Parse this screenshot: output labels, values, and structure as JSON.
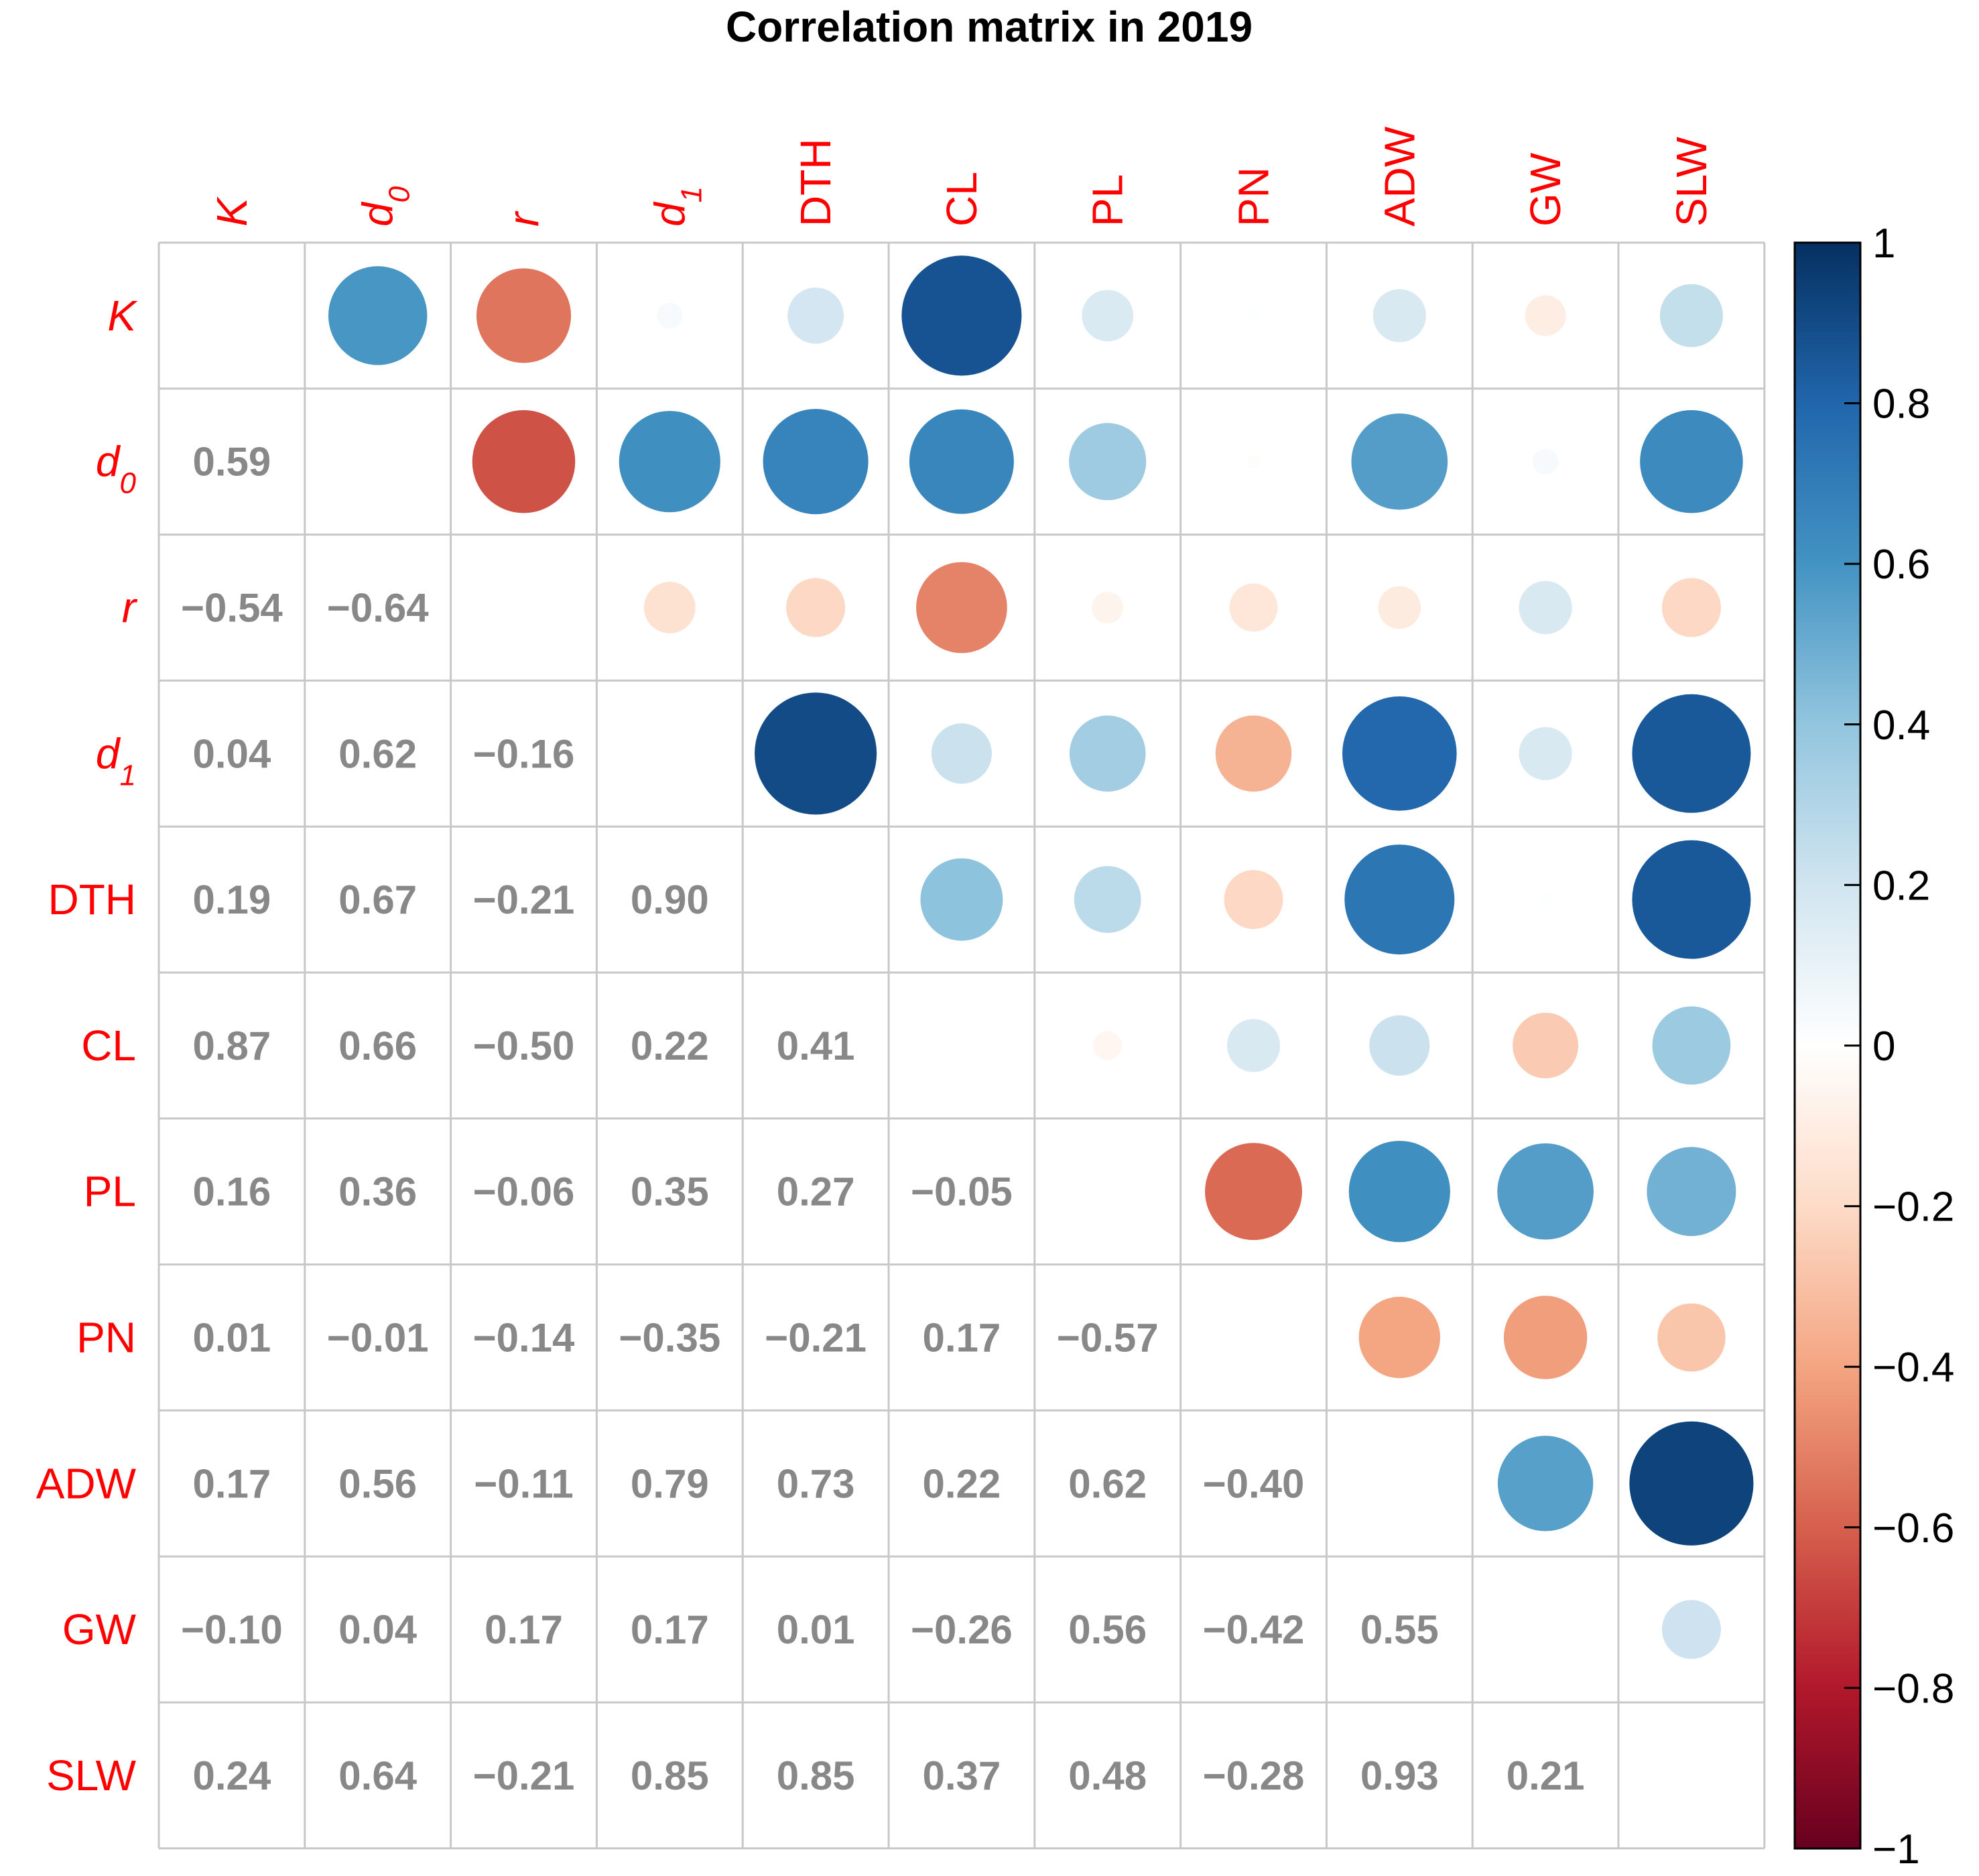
{
  "chart_data": {
    "type": "heatmap",
    "subtype": "correlation-matrix",
    "title": "Correlation matrix in 2019",
    "variables": [
      {
        "base": "K",
        "sub": "",
        "italic": true
      },
      {
        "base": "d",
        "sub": "0",
        "italic": true
      },
      {
        "base": "r",
        "sub": "",
        "italic": true
      },
      {
        "base": "d",
        "sub": "1",
        "italic": true
      },
      {
        "base": "DTH",
        "sub": "",
        "italic": false
      },
      {
        "base": "CL",
        "sub": "",
        "italic": false
      },
      {
        "base": "PL",
        "sub": "",
        "italic": false
      },
      {
        "base": "PN",
        "sub": "",
        "italic": false
      },
      {
        "base": "ADW",
        "sub": "",
        "italic": false
      },
      {
        "base": "GW",
        "sub": "",
        "italic": false
      },
      {
        "base": "SLW",
        "sub": "",
        "italic": false
      }
    ],
    "lower_triangle": "numbers",
    "upper_triangle": "circles",
    "matrix": [
      [
        null,
        0.59,
        -0.54,
        0.04,
        0.19,
        0.87,
        0.16,
        0.01,
        0.17,
        -0.1,
        0.24
      ],
      [
        0.59,
        null,
        -0.64,
        0.62,
        0.67,
        0.66,
        0.36,
        -0.01,
        0.56,
        0.04,
        0.64
      ],
      [
        -0.54,
        -0.64,
        null,
        -0.16,
        -0.21,
        -0.5,
        -0.06,
        -0.14,
        -0.11,
        0.17,
        -0.21
      ],
      [
        0.04,
        0.62,
        -0.16,
        null,
        0.9,
        0.22,
        0.35,
        -0.35,
        0.79,
        0.17,
        0.85
      ],
      [
        0.19,
        0.67,
        -0.21,
        0.9,
        null,
        0.41,
        0.27,
        -0.21,
        0.73,
        0.01,
        0.85
      ],
      [
        0.87,
        0.66,
        -0.5,
        0.22,
        0.41,
        null,
        -0.05,
        0.17,
        0.22,
        -0.26,
        0.37
      ],
      [
        0.16,
        0.36,
        -0.06,
        0.35,
        0.27,
        -0.05,
        null,
        -0.57,
        0.62,
        0.56,
        0.48
      ],
      [
        0.01,
        -0.01,
        -0.14,
        -0.35,
        -0.21,
        0.17,
        -0.57,
        null,
        -0.4,
        -0.42,
        -0.28
      ],
      [
        0.17,
        0.56,
        -0.11,
        0.79,
        0.73,
        0.22,
        0.62,
        -0.4,
        null,
        0.55,
        0.93
      ],
      [
        -0.1,
        0.04,
        0.17,
        0.17,
        0.01,
        -0.26,
        0.56,
        -0.42,
        0.55,
        null,
        0.21
      ],
      [
        0.24,
        0.64,
        -0.21,
        0.85,
        0.85,
        0.37,
        0.48,
        -0.28,
        0.93,
        0.21,
        null
      ]
    ],
    "number_labels": [
      [
        "",
        "",
        "",
        "",
        "",
        "",
        "",
        "",
        "",
        "",
        ""
      ],
      [
        "0.59",
        "",
        "",
        "",
        "",
        "",
        "",
        "",
        "",
        "",
        ""
      ],
      [
        "−0.54",
        "−0.64",
        "",
        "",
        "",
        "",
        "",
        "",
        "",
        "",
        ""
      ],
      [
        "0.04",
        "0.62",
        "−0.16",
        "",
        "",
        "",
        "",
        "",
        "",
        "",
        ""
      ],
      [
        "0.19",
        "0.67",
        "−0.21",
        "0.90",
        "",
        "",
        "",
        "",
        "",
        "",
        ""
      ],
      [
        "0.87",
        "0.66",
        "−0.50",
        "0.22",
        "0.41",
        "",
        "",
        "",
        "",
        "",
        ""
      ],
      [
        "0.16",
        "0.36",
        "−0.06",
        "0.35",
        "0.27",
        "−0.05",
        "",
        "",
        "",
        "",
        ""
      ],
      [
        "0.01",
        "−0.01",
        "−0.14",
        "−0.35",
        "−0.21",
        "0.17",
        "−0.57",
        "",
        "",
        "",
        ""
      ],
      [
        "0.17",
        "0.56",
        "−0.11",
        "0.79",
        "0.73",
        "0.22",
        "0.62",
        "−0.40",
        "",
        "",
        ""
      ],
      [
        "−0.10",
        "0.04",
        "0.17",
        "0.17",
        "0.01",
        "−0.26",
        "0.56",
        "−0.42",
        "0.55",
        "",
        ""
      ],
      [
        "0.24",
        "0.64",
        "−0.21",
        "0.85",
        "0.85",
        "0.37",
        "0.48",
        "−0.28",
        "0.93",
        "0.21",
        ""
      ]
    ],
    "colorbar": {
      "range": [
        -1,
        1
      ],
      "ticks": [
        1,
        0.8,
        0.6,
        0.4,
        0.2,
        0,
        -0.2,
        -0.4,
        -0.6,
        -0.8,
        -1
      ],
      "tick_labels": [
        "1",
        "0.8",
        "0.6",
        "0.4",
        "0.2",
        "0",
        "−0.2",
        "−0.4",
        "−0.6",
        "−0.8",
        "−1"
      ],
      "palette": "RdBu",
      "stops": [
        {
          "v": -1.0,
          "color": "#67001f"
        },
        {
          "v": -0.8,
          "color": "#b2182b"
        },
        {
          "v": -0.6,
          "color": "#d6604d"
        },
        {
          "v": -0.4,
          "color": "#f4a582"
        },
        {
          "v": -0.2,
          "color": "#fddbc7"
        },
        {
          "v": 0.0,
          "color": "#ffffff"
        },
        {
          "v": 0.2,
          "color": "#d1e5f0"
        },
        {
          "v": 0.4,
          "color": "#92c5de"
        },
        {
          "v": 0.6,
          "color": "#4393c3"
        },
        {
          "v": 0.8,
          "color": "#2166ac"
        },
        {
          "v": 1.0,
          "color": "#053061"
        }
      ]
    },
    "colors": {
      "label": "#ff0000",
      "number": "#888888",
      "grid": "#c8c8c8",
      "axis": "#000000"
    }
  }
}
